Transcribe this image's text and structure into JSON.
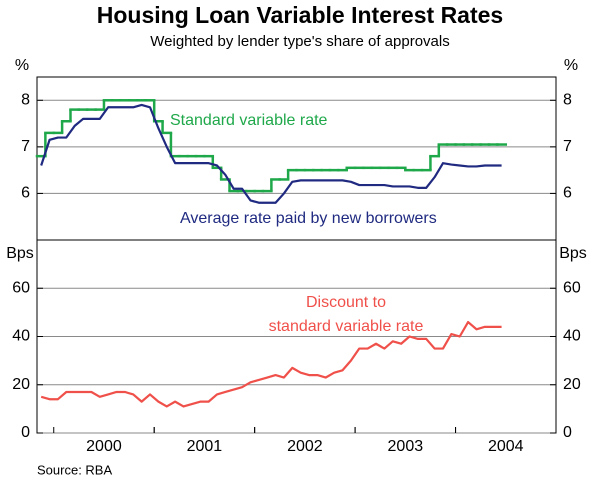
{
  "chart_data": [
    {
      "type": "line",
      "title": "Housing Loan Variable Interest Rates",
      "subtitle": "Weighted by lender type's share of approvals",
      "ylabel": "%",
      "ylim": [
        5,
        8.5
      ],
      "yticks": [
        6,
        7,
        8
      ],
      "grid": true,
      "series": [
        {
          "name": "Standard variable rate",
          "color": "#1fa84a",
          "step": true,
          "values": [
            6.8,
            7.3,
            7.3,
            7.55,
            7.8,
            7.8,
            7.8,
            7.8,
            8.0,
            8.0,
            8.0,
            8.0,
            8.0,
            8.0,
            7.55,
            7.3,
            6.8,
            6.8,
            6.8,
            6.8,
            6.8,
            6.55,
            6.3,
            6.05,
            6.05,
            6.05,
            6.05,
            6.05,
            6.3,
            6.3,
            6.5,
            6.5,
            6.5,
            6.5,
            6.5,
            6.5,
            6.5,
            6.55,
            6.55,
            6.55,
            6.55,
            6.55,
            6.55,
            6.55,
            6.5,
            6.5,
            6.5,
            6.8,
            7.05,
            7.05,
            7.05,
            7.05,
            7.05,
            7.05,
            7.05,
            7.05,
            null,
            null,
            null,
            null,
            null,
            null
          ]
        },
        {
          "name": "Average rate paid by new borrowers",
          "color": "#1f2a80",
          "values": [
            6.6,
            7.15,
            7.2,
            7.2,
            7.45,
            7.6,
            7.6,
            7.6,
            7.85,
            7.85,
            7.85,
            7.85,
            7.9,
            7.85,
            7.4,
            7.0,
            6.65,
            6.65,
            6.65,
            6.65,
            6.65,
            6.6,
            6.4,
            6.1,
            6.1,
            5.85,
            5.8,
            5.8,
            5.8,
            6.0,
            6.25,
            6.28,
            6.28,
            6.28,
            6.28,
            6.28,
            6.28,
            6.25,
            6.18,
            6.18,
            6.18,
            6.18,
            6.15,
            6.15,
            6.15,
            6.12,
            6.12,
            6.35,
            6.65,
            6.62,
            6.6,
            6.58,
            6.58,
            6.6,
            6.6,
            6.6,
            null,
            null,
            null,
            null,
            null,
            null
          ]
        }
      ]
    },
    {
      "type": "line",
      "ylabel": "Bps",
      "ylim": [
        0,
        80
      ],
      "yticks": [
        0,
        20,
        40,
        60
      ],
      "grid": true,
      "categories": [
        null,
        null,
        null,
        null,
        null,
        null,
        null,
        null,
        "2000",
        null,
        null,
        null,
        null,
        null,
        null,
        null,
        null,
        null,
        null,
        null,
        "2001",
        null,
        null,
        null,
        null,
        null,
        null,
        null,
        null,
        null,
        null,
        null,
        "2002",
        null,
        null,
        null,
        null,
        null,
        null,
        null,
        null,
        null,
        null,
        null,
        "2003",
        null,
        null,
        null,
        null,
        null,
        null,
        null,
        null,
        null,
        null,
        null,
        "2004",
        null,
        null,
        null,
        null,
        null
      ],
      "series": [
        {
          "name": "Discount to standard variable rate",
          "name_lines": [
            "Discount to",
            "standard variable rate"
          ],
          "color": "#f0504a",
          "values": [
            15,
            14,
            14,
            17,
            17,
            17,
            17,
            15,
            16,
            17,
            17,
            16,
            13,
            16,
            13,
            11,
            13,
            11,
            12,
            13,
            13,
            16,
            17,
            18,
            19,
            21,
            22,
            23,
            24,
            23,
            27,
            25,
            24,
            24,
            23,
            25,
            26,
            30,
            35,
            35,
            37,
            35,
            38,
            37,
            40,
            39,
            39,
            35,
            35,
            41,
            40,
            46,
            43,
            44,
            44,
            44,
            null,
            null,
            null,
            null,
            null,
            null
          ]
        }
      ],
      "source": "Source: RBA"
    }
  ]
}
